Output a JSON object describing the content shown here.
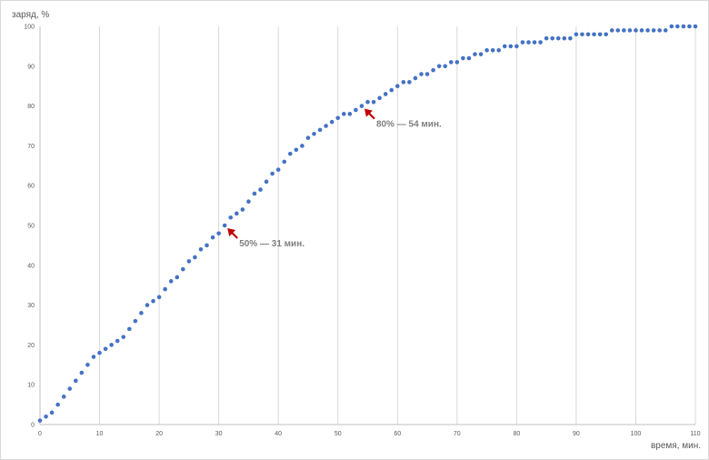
{
  "chart_data": {
    "type": "scatter",
    "title": "",
    "xlabel": "время, мин.",
    "ylabel": "заряд, %",
    "xlim": [
      0,
      110
    ],
    "ylim": [
      0,
      100
    ],
    "x_ticks": [
      0,
      10,
      20,
      30,
      40,
      50,
      60,
      70,
      80,
      90,
      100,
      110
    ],
    "y_ticks": [
      0,
      10,
      20,
      30,
      40,
      50,
      60,
      70,
      80,
      90,
      100
    ],
    "grid": "vertical",
    "series_color": "#4472c4",
    "annotation_color": "#c00000",
    "series": [
      {
        "x": [
          0,
          1,
          2,
          3,
          4,
          5,
          6,
          7,
          8,
          9,
          10,
          11,
          12,
          13,
          14,
          15,
          16,
          17,
          18,
          19,
          20,
          21,
          22,
          23,
          24,
          25,
          26,
          27,
          28,
          29,
          30,
          31,
          32,
          33,
          34,
          35,
          36,
          37,
          38,
          39,
          40,
          41,
          42,
          43,
          44,
          45,
          46,
          47,
          48,
          49,
          50,
          51,
          52,
          53,
          54,
          55,
          56,
          57,
          58,
          59,
          60,
          61,
          62,
          63,
          64,
          65,
          66,
          67,
          68,
          69,
          70,
          71,
          72,
          73,
          74,
          75,
          76,
          77,
          78,
          79,
          80,
          81,
          82,
          83,
          84,
          85,
          86,
          87,
          88,
          89,
          90,
          91,
          92,
          93,
          94,
          95,
          96,
          97,
          98,
          99,
          100,
          101,
          102,
          103,
          104,
          105,
          106,
          107,
          108,
          109,
          110
        ],
        "y": [
          1,
          2,
          3,
          5,
          7,
          9,
          11,
          13,
          15,
          17,
          18,
          19,
          20,
          21,
          22,
          24,
          26,
          28,
          30,
          31,
          32,
          34,
          36,
          37,
          39,
          41,
          42,
          44,
          45,
          47,
          48,
          50,
          52,
          53,
          54,
          56,
          58,
          59,
          61,
          63,
          64,
          66,
          68,
          69,
          70,
          72,
          73,
          74,
          75,
          76,
          77,
          78,
          78,
          79,
          80,
          81,
          81,
          82,
          83,
          84,
          85,
          86,
          86,
          87,
          88,
          88,
          89,
          90,
          90,
          91,
          91,
          92,
          92,
          93,
          93,
          94,
          94,
          94,
          95,
          95,
          95,
          96,
          96,
          96,
          96,
          97,
          97,
          97,
          97,
          97,
          98,
          98,
          98,
          98,
          98,
          98,
          99,
          99,
          99,
          99,
          99,
          99,
          99,
          99,
          99,
          99,
          100,
          100,
          100,
          100,
          100
        ]
      }
    ],
    "annotations": [
      {
        "label": "50% — 31 мин.",
        "x": 31,
        "y": 50
      },
      {
        "label": "80% — 54 мин.",
        "x": 54,
        "y": 80
      }
    ]
  }
}
